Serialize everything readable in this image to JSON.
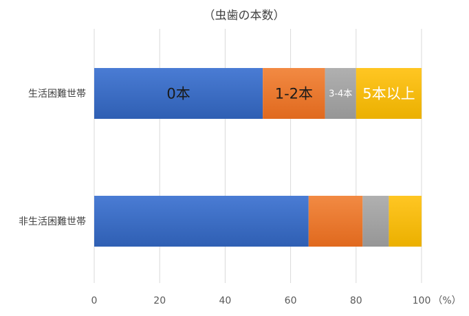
{
  "chart_data": {
    "type": "bar",
    "orientation": "horizontal",
    "stacked": true,
    "title": "（虫歯の本数）",
    "unit_label": "（%）",
    "categories": [
      "生活困難世帯",
      "非生活困難世帯"
    ],
    "series": [
      {
        "name": "0本",
        "values": [
          51.5,
          65.5
        ],
        "color": "#4472C4"
      },
      {
        "name": "1-2本",
        "values": [
          19.0,
          16.5
        ],
        "color": "#ED7D31"
      },
      {
        "name": "3-4本",
        "values": [
          9.5,
          8.0
        ],
        "color": "#A5A5A5"
      },
      {
        "name": "5本以上",
        "values": [
          20.0,
          10.0
        ],
        "color": "#FFC000"
      }
    ],
    "xlim": [
      0,
      100
    ],
    "xticks": [
      0,
      20,
      40,
      60,
      80,
      100
    ],
    "grid": true,
    "legend": "none",
    "data_labels_on_category": 0
  }
}
